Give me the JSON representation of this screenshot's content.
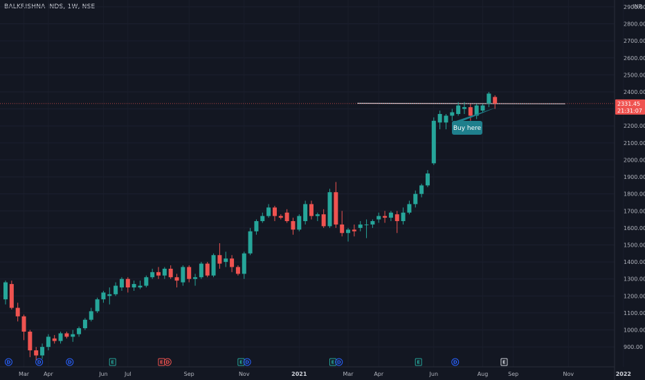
{
  "header": {
    "title": "BALKRISHNA INDS, 1W, NSE"
  },
  "currency": "INR",
  "colors": {
    "background": "#131722",
    "up": "#26a69a",
    "down": "#ef5350",
    "axis_text": "#b2b5be",
    "price_line": "#ef5350",
    "trendline": "#d1d4dc",
    "annotation_bg": "#1f7f8c",
    "event_dividend": "#2962ff",
    "event_earnings_up": "#26a69a",
    "event_earnings_down": "#ef5350",
    "event_neutral": "#d1d4dc"
  },
  "price_tag": {
    "price": "2331.45",
    "countdown": "21:31:07"
  },
  "annotation": {
    "text": "Buy here"
  },
  "chart_data": {
    "type": "candlestick",
    "title": "BALKRISHNA INDS, 1W, NSE",
    "ylim": [
      860,
      2920
    ],
    "y_ticks": [
      900,
      1000,
      1100,
      1200,
      1300,
      1400,
      1500,
      1600,
      1700,
      1800,
      1900,
      2000,
      2100,
      2200,
      2300,
      2400,
      2500,
      2600,
      2700,
      2800,
      2900
    ],
    "x_ticks": [
      {
        "week": 3,
        "label": "Mar"
      },
      {
        "week": 7,
        "label": "Apr"
      },
      {
        "week": 16,
        "label": "Jun"
      },
      {
        "week": 20,
        "label": "Jul"
      },
      {
        "week": 30,
        "label": "Sep"
      },
      {
        "week": 39,
        "label": "Nov"
      },
      {
        "week": 48,
        "label": "2021",
        "bold": true
      },
      {
        "week": 56,
        "label": "Mar"
      },
      {
        "week": 61,
        "label": "Apr"
      },
      {
        "week": 70,
        "label": "Jun"
      },
      {
        "week": 78,
        "label": "Aug"
      },
      {
        "week": 83,
        "label": "Sep"
      },
      {
        "week": 92,
        "label": "Nov"
      },
      {
        "week": 101,
        "label": "2022",
        "bold": true
      }
    ],
    "candles": [
      {
        "o": 1180,
        "h": 1290,
        "l": 1150,
        "c": 1280
      },
      {
        "o": 1270,
        "h": 1290,
        "l": 1120,
        "c": 1130
      },
      {
        "o": 1130,
        "h": 1160,
        "l": 1050,
        "c": 1080
      },
      {
        "o": 1080,
        "h": 1090,
        "l": 940,
        "c": 990
      },
      {
        "o": 990,
        "h": 1000,
        "l": 840,
        "c": 880
      },
      {
        "o": 880,
        "h": 900,
        "l": 820,
        "c": 850
      },
      {
        "o": 850,
        "h": 920,
        "l": 830,
        "c": 900
      },
      {
        "o": 900,
        "h": 975,
        "l": 880,
        "c": 960
      },
      {
        "o": 950,
        "h": 970,
        "l": 920,
        "c": 935
      },
      {
        "o": 935,
        "h": 990,
        "l": 920,
        "c": 980
      },
      {
        "o": 980,
        "h": 990,
        "l": 950,
        "c": 960
      },
      {
        "o": 960,
        "h": 1000,
        "l": 930,
        "c": 975
      },
      {
        "o": 975,
        "h": 1020,
        "l": 960,
        "c": 1010
      },
      {
        "o": 1010,
        "h": 1070,
        "l": 1000,
        "c": 1060
      },
      {
        "o": 1060,
        "h": 1130,
        "l": 1050,
        "c": 1110
      },
      {
        "o": 1110,
        "h": 1190,
        "l": 1100,
        "c": 1180
      },
      {
        "o": 1180,
        "h": 1230,
        "l": 1160,
        "c": 1220
      },
      {
        "o": 1200,
        "h": 1250,
        "l": 1150,
        "c": 1210
      },
      {
        "o": 1210,
        "h": 1280,
        "l": 1200,
        "c": 1260
      },
      {
        "o": 1250,
        "h": 1310,
        "l": 1230,
        "c": 1300
      },
      {
        "o": 1300,
        "h": 1310,
        "l": 1220,
        "c": 1250
      },
      {
        "o": 1250,
        "h": 1290,
        "l": 1230,
        "c": 1270
      },
      {
        "o": 1250,
        "h": 1290,
        "l": 1240,
        "c": 1260
      },
      {
        "o": 1260,
        "h": 1320,
        "l": 1250,
        "c": 1310
      },
      {
        "o": 1310,
        "h": 1360,
        "l": 1300,
        "c": 1340
      },
      {
        "o": 1340,
        "h": 1370,
        "l": 1300,
        "c": 1320
      },
      {
        "o": 1320,
        "h": 1370,
        "l": 1300,
        "c": 1360
      },
      {
        "o": 1360,
        "h": 1380,
        "l": 1300,
        "c": 1310
      },
      {
        "o": 1310,
        "h": 1330,
        "l": 1250,
        "c": 1290
      },
      {
        "o": 1280,
        "h": 1380,
        "l": 1260,
        "c": 1370
      },
      {
        "o": 1370,
        "h": 1380,
        "l": 1280,
        "c": 1300
      },
      {
        "o": 1300,
        "h": 1330,
        "l": 1260,
        "c": 1310
      },
      {
        "o": 1310,
        "h": 1400,
        "l": 1300,
        "c": 1390
      },
      {
        "o": 1390,
        "h": 1400,
        "l": 1310,
        "c": 1320
      },
      {
        "o": 1320,
        "h": 1450,
        "l": 1310,
        "c": 1440
      },
      {
        "o": 1440,
        "h": 1510,
        "l": 1360,
        "c": 1390
      },
      {
        "o": 1400,
        "h": 1460,
        "l": 1370,
        "c": 1420
      },
      {
        "o": 1420,
        "h": 1440,
        "l": 1340,
        "c": 1370
      },
      {
        "o": 1370,
        "h": 1380,
        "l": 1320,
        "c": 1330
      },
      {
        "o": 1330,
        "h": 1460,
        "l": 1300,
        "c": 1450
      },
      {
        "o": 1450,
        "h": 1600,
        "l": 1440,
        "c": 1580
      },
      {
        "o": 1580,
        "h": 1650,
        "l": 1560,
        "c": 1640
      },
      {
        "o": 1640,
        "h": 1690,
        "l": 1630,
        "c": 1670
      },
      {
        "o": 1670,
        "h": 1740,
        "l": 1660,
        "c": 1720
      },
      {
        "o": 1720,
        "h": 1730,
        "l": 1640,
        "c": 1670
      },
      {
        "o": 1670,
        "h": 1680,
        "l": 1650,
        "c": 1660
      },
      {
        "o": 1690,
        "h": 1710,
        "l": 1630,
        "c": 1640
      },
      {
        "o": 1640,
        "h": 1660,
        "l": 1560,
        "c": 1590
      },
      {
        "o": 1590,
        "h": 1680,
        "l": 1580,
        "c": 1670
      },
      {
        "o": 1640,
        "h": 1760,
        "l": 1620,
        "c": 1740
      },
      {
        "o": 1740,
        "h": 1760,
        "l": 1650,
        "c": 1670
      },
      {
        "o": 1670,
        "h": 1690,
        "l": 1640,
        "c": 1680
      },
      {
        "o": 1680,
        "h": 1710,
        "l": 1600,
        "c": 1610
      },
      {
        "o": 1610,
        "h": 1830,
        "l": 1600,
        "c": 1810
      },
      {
        "o": 1810,
        "h": 1870,
        "l": 1600,
        "c": 1620
      },
      {
        "o": 1620,
        "h": 1700,
        "l": 1550,
        "c": 1570
      },
      {
        "o": 1570,
        "h": 1600,
        "l": 1520,
        "c": 1590
      },
      {
        "o": 1590,
        "h": 1620,
        "l": 1550,
        "c": 1580
      },
      {
        "o": 1600,
        "h": 1640,
        "l": 1580,
        "c": 1620
      },
      {
        "o": 1620,
        "h": 1650,
        "l": 1540,
        "c": 1620
      },
      {
        "o": 1620,
        "h": 1650,
        "l": 1600,
        "c": 1640
      },
      {
        "o": 1650,
        "h": 1690,
        "l": 1630,
        "c": 1670
      },
      {
        "o": 1670,
        "h": 1700,
        "l": 1630,
        "c": 1660
      },
      {
        "o": 1660,
        "h": 1700,
        "l": 1640,
        "c": 1690
      },
      {
        "o": 1680,
        "h": 1700,
        "l": 1570,
        "c": 1640
      },
      {
        "o": 1640,
        "h": 1720,
        "l": 1620,
        "c": 1690
      },
      {
        "o": 1690,
        "h": 1760,
        "l": 1680,
        "c": 1740
      },
      {
        "o": 1740,
        "h": 1820,
        "l": 1720,
        "c": 1800
      },
      {
        "o": 1800,
        "h": 1860,
        "l": 1780,
        "c": 1850
      },
      {
        "o": 1850,
        "h": 1940,
        "l": 1840,
        "c": 1920
      },
      {
        "o": 1980,
        "h": 2250,
        "l": 1970,
        "c": 2230
      },
      {
        "o": 2220,
        "h": 2290,
        "l": 2180,
        "c": 2270
      },
      {
        "o": 2220,
        "h": 2270,
        "l": 2180,
        "c": 2260
      },
      {
        "o": 2260,
        "h": 2300,
        "l": 2230,
        "c": 2280
      },
      {
        "o": 2270,
        "h": 2340,
        "l": 2260,
        "c": 2320
      },
      {
        "o": 2300,
        "h": 2340,
        "l": 2270,
        "c": 2310
      },
      {
        "o": 2310,
        "h": 2330,
        "l": 2230,
        "c": 2260
      },
      {
        "o": 2260,
        "h": 2330,
        "l": 2240,
        "c": 2320
      },
      {
        "o": 2290,
        "h": 2330,
        "l": 2280,
        "c": 2320
      },
      {
        "o": 2330,
        "h": 2400,
        "l": 2310,
        "c": 2390
      },
      {
        "o": 2370,
        "h": 2380,
        "l": 2300,
        "c": 2331.45
      }
    ],
    "trendline": {
      "x1": 57.5,
      "y1": 2333,
      "x2": 91.5,
      "y2": 2330
    },
    "events": [
      {
        "week": 0.5,
        "type": "D",
        "style": "dividend"
      },
      {
        "week": 5.5,
        "type": "D",
        "style": "dividend"
      },
      {
        "week": 10.5,
        "type": "D",
        "style": "dividend"
      },
      {
        "week": 17.5,
        "type": "E",
        "style": "earnings_up"
      },
      {
        "week": 25.5,
        "type": "E",
        "style": "earnings_down"
      },
      {
        "week": 26.5,
        "type": "D",
        "style": "earnings_down"
      },
      {
        "week": 38.5,
        "type": "E",
        "style": "earnings_up"
      },
      {
        "week": 39.5,
        "type": "D",
        "style": "dividend"
      },
      {
        "week": 53.5,
        "type": "E",
        "style": "earnings_up"
      },
      {
        "week": 54.5,
        "type": "D",
        "style": "dividend"
      },
      {
        "week": 67.5,
        "type": "E",
        "style": "earnings_up"
      },
      {
        "week": 73.5,
        "type": "D",
        "style": "dividend"
      },
      {
        "week": 81.5,
        "type": "E",
        "style": "neutral"
      }
    ]
  }
}
